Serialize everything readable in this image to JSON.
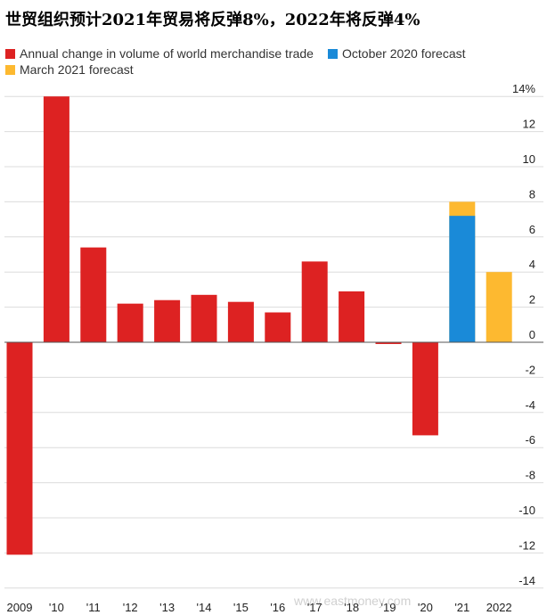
{
  "title": "世贸组织预计2021年贸易将反弹8%，2022年将反弹4%",
  "legend": [
    {
      "label": "Annual change in volume of world merchandise trade",
      "color": "#dd2222"
    },
    {
      "label": "October 2020 forecast",
      "color": "#1a8ad8"
    },
    {
      "label": "March 2021 forecast",
      "color": "#fdb930"
    }
  ],
  "watermark": "www.eastmoney.com",
  "chart_data": {
    "type": "bar",
    "categories": [
      "2009",
      "'10",
      "'11",
      "'12",
      "'13",
      "'14",
      "'15",
      "'16",
      "'17",
      "'18",
      "'19",
      "'20",
      "'21",
      "2022"
    ],
    "series": [
      {
        "name": "Annual change in volume of world merchandise trade",
        "color": "#dd2222",
        "values": [
          -12.1,
          14.0,
          5.4,
          2.2,
          2.4,
          2.7,
          2.3,
          1.7,
          4.6,
          2.9,
          -0.1,
          -5.3,
          null,
          null
        ]
      },
      {
        "name": "October 2020 forecast",
        "color": "#1a8ad8",
        "values": [
          null,
          null,
          null,
          null,
          null,
          null,
          null,
          null,
          null,
          null,
          null,
          null,
          7.2,
          null
        ]
      },
      {
        "name": "March 2021 forecast",
        "color": "#fdb930",
        "values": [
          null,
          null,
          null,
          null,
          null,
          null,
          null,
          null,
          null,
          null,
          null,
          null,
          8.0,
          4.0
        ]
      }
    ],
    "ylim": [
      -14,
      14
    ],
    "yticks": [
      {
        "value": 14,
        "label": "14%"
      },
      {
        "value": 12,
        "label": "12"
      },
      {
        "value": 10,
        "label": "10"
      },
      {
        "value": 8,
        "label": "8"
      },
      {
        "value": 6,
        "label": "6"
      },
      {
        "value": 4,
        "label": "4"
      },
      {
        "value": 2,
        "label": "2"
      },
      {
        "value": 0,
        "label": "0"
      },
      {
        "value": -2,
        "label": "-2"
      },
      {
        "value": -4,
        "label": "-4"
      },
      {
        "value": -6,
        "label": "-6"
      },
      {
        "value": -8,
        "label": "-8"
      },
      {
        "value": -10,
        "label": "-10"
      },
      {
        "value": -12,
        "label": "-12"
      },
      {
        "value": -14,
        "label": "-14"
      }
    ],
    "grid": true,
    "yaxis_side": "right",
    "legend_position": "top-left"
  }
}
